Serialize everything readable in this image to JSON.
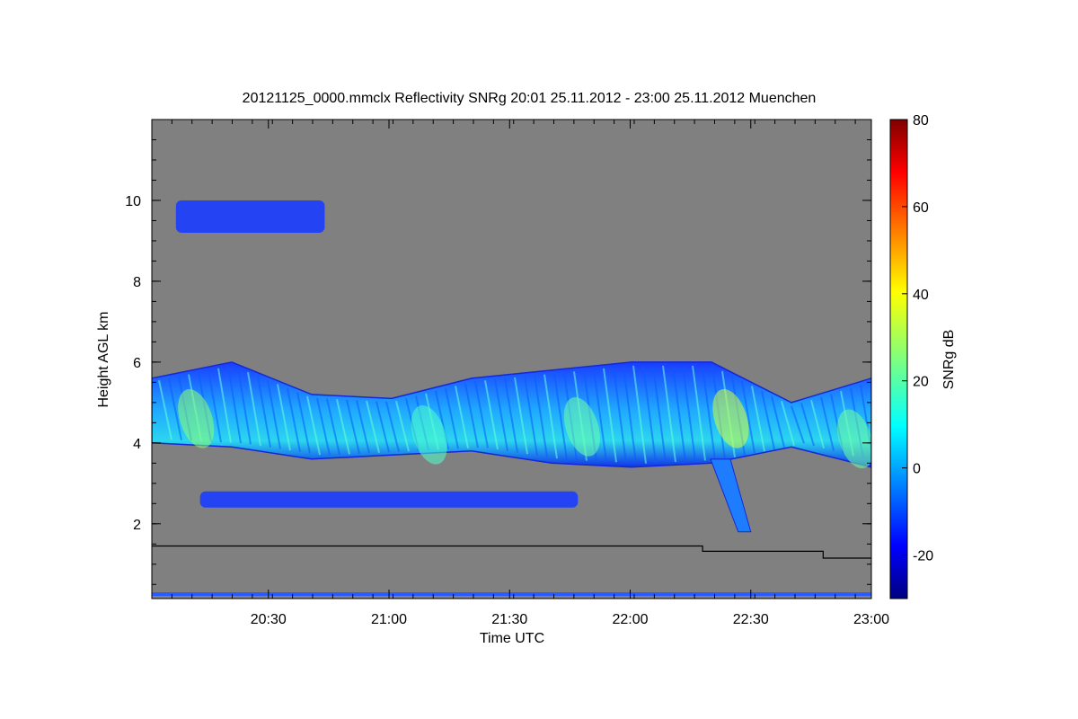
{
  "chart_data": {
    "type": "heatmap",
    "title": "20121125_0000.mmclx Reflectivity SNRg   20:01 25.11.2012 - 23:00 25.11.2012 Muenchen",
    "xlabel": "Time UTC",
    "ylabel": "Height AGL km",
    "x_range": [
      "20:01",
      "23:00"
    ],
    "ylim": [
      0.15,
      12.0
    ],
    "x_ticks": [
      "20:30",
      "21:00",
      "21:30",
      "22:00",
      "22:30",
      "23:00"
    ],
    "y_ticks": [
      2,
      4,
      6,
      8,
      10
    ],
    "background_color": "#808080",
    "colorbar": {
      "label": "SNRg dB",
      "range": [
        -30,
        80
      ],
      "ticks": [
        -20,
        0,
        20,
        40,
        60,
        80
      ],
      "colormap": "jet"
    },
    "cloud_layers": [
      {
        "name": "main layer",
        "time_start": "20:01",
        "time_end": "23:00",
        "base_km": [
          4.0,
          3.9,
          3.6,
          3.7,
          3.8,
          3.5,
          3.4,
          3.5,
          3.9,
          3.4
        ],
        "top_km": [
          5.6,
          6.0,
          5.2,
          5.1,
          5.6,
          5.8,
          6.0,
          6.0,
          5.0,
          5.6
        ],
        "peak_snr_db": 35
      },
      {
        "name": "lower layer",
        "time_start": "20:13",
        "time_end": "21:47",
        "base_km": 2.4,
        "top_km": 2.8
      },
      {
        "name": "fall streak",
        "time_start": "22:20",
        "time_end": "22:30",
        "base_km": 1.8,
        "top_km": 3.6
      },
      {
        "name": "cirrus",
        "time_start": "20:07",
        "time_end": "20:44",
        "base_km": 9.2,
        "top_km": 10.0
      }
    ],
    "line_series": {
      "color": "#000000",
      "points": [
        [
          "20:01",
          1.45
        ],
        [
          "22:18",
          1.45
        ],
        [
          "22:18",
          1.32
        ],
        [
          "22:48",
          1.32
        ],
        [
          "22:48",
          1.15
        ],
        [
          "23:00",
          1.15
        ]
      ]
    }
  }
}
